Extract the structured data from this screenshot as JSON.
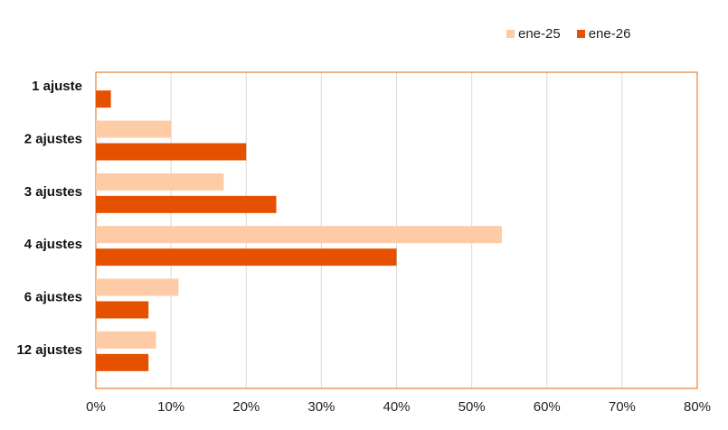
{
  "chart_data": {
    "type": "bar",
    "orientation": "horizontal",
    "categories": [
      "1 ajuste",
      "2 ajustes",
      "3 ajustes",
      "4 ajustes",
      "6 ajustes",
      "12 ajustes"
    ],
    "series": [
      {
        "name": "ene-25",
        "color": "#FDCBA5",
        "values": [
          0,
          10,
          17,
          54,
          11,
          8
        ]
      },
      {
        "name": "ene-26",
        "color": "#E65100",
        "values": [
          2,
          20,
          24,
          40,
          7,
          7
        ]
      }
    ],
    "xlim": [
      0,
      80
    ],
    "xticks": [
      "0%",
      "10%",
      "20%",
      "30%",
      "40%",
      "50%",
      "60%",
      "70%",
      "80%"
    ],
    "grid": true,
    "legend_position": "top-right",
    "frame_color": "#E8803A"
  }
}
